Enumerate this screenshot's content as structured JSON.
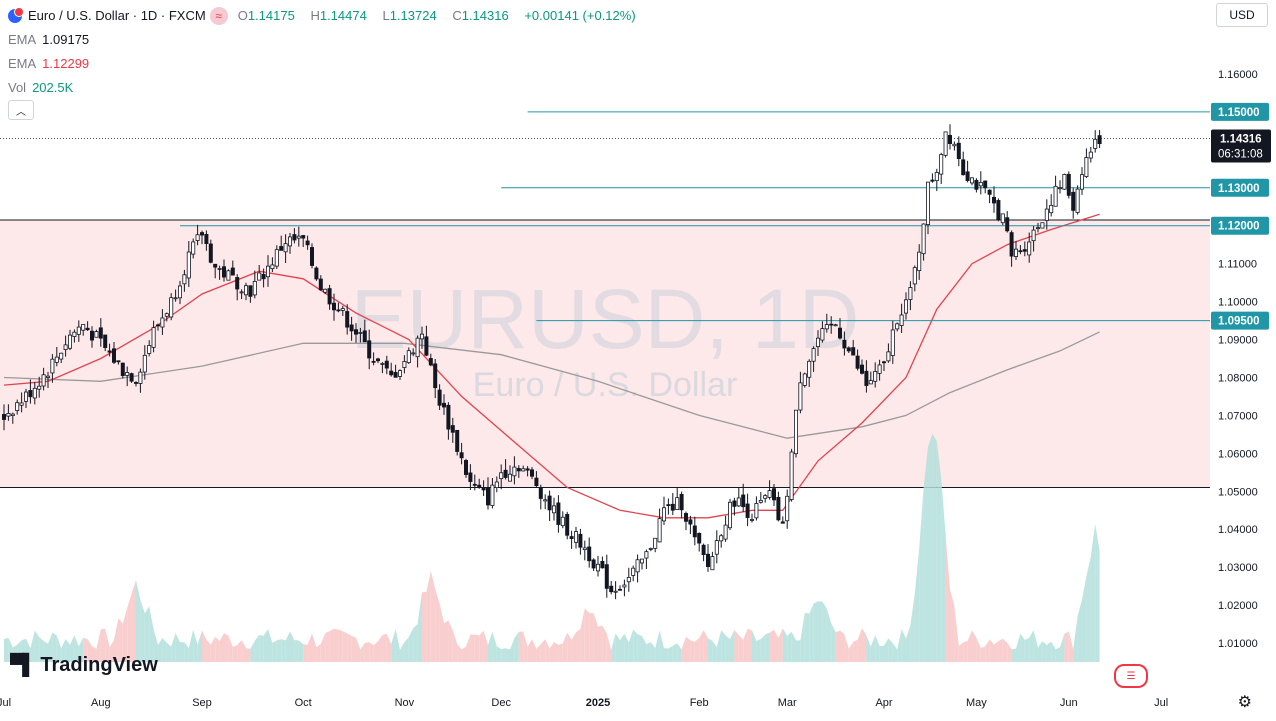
{
  "header": {
    "symbol_title": "Euro / U.S. Dollar · 1D · FXCM",
    "open_label": "O",
    "open": "1.14175",
    "high_label": "H",
    "high": "1.14474",
    "low_label": "L",
    "low": "1.13724",
    "close_label": "C",
    "close": "1.14316",
    "change": "+0.00141 (+0.12%)"
  },
  "indicators": [
    {
      "name": "EMA",
      "value": "1.09175",
      "color": "#787b86"
    },
    {
      "name": "EMA",
      "value": "1.12299",
      "color": "#f23645"
    },
    {
      "name": "Vol",
      "value": "202.5K",
      "color": "#26a69a"
    }
  ],
  "currency_selector": "USD",
  "watermark": {
    "symbol": "EURUSD, 1D",
    "description": "Euro / U.S. Dollar"
  },
  "brand": "TradingView",
  "price_tag": {
    "price": "1.14316",
    "countdown": "06:31:08"
  },
  "colors": {
    "up": "#26a69a",
    "down": "#ef5350",
    "candle": "#131722",
    "hline": "#2196a6",
    "zone": "#fde8ea",
    "ema_fast": "#e0454f",
    "ema_slow": "#9a9a9a"
  },
  "chart_data": {
    "type": "candlestick",
    "title": "EURUSD, 1D",
    "ylim": [
      1.005,
      1.165
    ],
    "y_ticks": [
      "1.16000",
      "1.15000",
      "1.14000",
      "1.13000",
      "1.12000",
      "1.11000",
      "1.10000",
      "1.09000",
      "1.08000",
      "1.07000",
      "1.06000",
      "1.05000",
      "1.04000",
      "1.03000",
      "1.02000",
      "1.01000"
    ],
    "x_labels": [
      "Jul",
      "Aug",
      "Sep",
      "Oct",
      "Nov",
      "Dec",
      "2025",
      "Feb",
      "Mar",
      "Apr",
      "May",
      "Jun",
      "Jul"
    ],
    "x_label_index": [
      0,
      22,
      45,
      68,
      91,
      113,
      135,
      158,
      178,
      200,
      221,
      242,
      263
    ],
    "horizontal_levels": [
      {
        "label": "1.15000",
        "value": 1.15,
        "start_index": 119
      },
      {
        "label": "1.13000",
        "value": 1.13,
        "start_index": 113
      },
      {
        "label": "1.12000",
        "value": 1.12,
        "start_index": 40
      },
      {
        "label": "1.09500",
        "value": 1.095,
        "start_index": 121
      }
    ],
    "zone": {
      "top": 1.1215,
      "bottom": 1.051
    },
    "close_path": [
      [
        0,
        1.07
      ],
      [
        5,
        1.075
      ],
      [
        10,
        1.082
      ],
      [
        15,
        1.091
      ],
      [
        18,
        1.094
      ],
      [
        22,
        1.089
      ],
      [
        27,
        1.082
      ],
      [
        30,
        1.08
      ],
      [
        34,
        1.092
      ],
      [
        38,
        1.1
      ],
      [
        42,
        1.112
      ],
      [
        45,
        1.118
      ],
      [
        48,
        1.109
      ],
      [
        52,
        1.106
      ],
      [
        56,
        1.103
      ],
      [
        60,
        1.109
      ],
      [
        64,
        1.116
      ],
      [
        68,
        1.116
      ],
      [
        72,
        1.104
      ],
      [
        76,
        1.098
      ],
      [
        80,
        1.092
      ],
      [
        84,
        1.085
      ],
      [
        88,
        1.08
      ],
      [
        92,
        1.086
      ],
      [
        95,
        1.092
      ],
      [
        98,
        1.077
      ],
      [
        102,
        1.065
      ],
      [
        106,
        1.052
      ],
      [
        110,
        1.048
      ],
      [
        113,
        1.055
      ],
      [
        117,
        1.057
      ],
      [
        121,
        1.052
      ],
      [
        124,
        1.046
      ],
      [
        128,
        1.04
      ],
      [
        132,
        1.035
      ],
      [
        135,
        1.03
      ],
      [
        138,
        1.024
      ],
      [
        142,
        1.027
      ],
      [
        146,
        1.033
      ],
      [
        150,
        1.045
      ],
      [
        154,
        1.047
      ],
      [
        157,
        1.037
      ],
      [
        160,
        1.03
      ],
      [
        163,
        1.04
      ],
      [
        166,
        1.048
      ],
      [
        170,
        1.044
      ],
      [
        174,
        1.049
      ],
      [
        177,
        1.04
      ],
      [
        179,
        1.06
      ],
      [
        181,
        1.08
      ],
      [
        185,
        1.09
      ],
      [
        189,
        1.094
      ],
      [
        192,
        1.087
      ],
      [
        196,
        1.078
      ],
      [
        200,
        1.083
      ],
      [
        203,
        1.096
      ],
      [
        206,
        1.102
      ],
      [
        208,
        1.114
      ],
      [
        210,
        1.13
      ],
      [
        212,
        1.135
      ],
      [
        214,
        1.145
      ],
      [
        216,
        1.142
      ],
      [
        218,
        1.135
      ],
      [
        221,
        1.131
      ],
      [
        224,
        1.127
      ],
      [
        227,
        1.122
      ],
      [
        229,
        1.112
      ],
      [
        232,
        1.115
      ],
      [
        235,
        1.12
      ],
      [
        238,
        1.127
      ],
      [
        241,
        1.132
      ],
      [
        243,
        1.125
      ],
      [
        245,
        1.135
      ],
      [
        247,
        1.14
      ],
      [
        249,
        1.143
      ]
    ],
    "ema_fast": [
      [
        0,
        1.078
      ],
      [
        10,
        1.079
      ],
      [
        22,
        1.085
      ],
      [
        34,
        1.093
      ],
      [
        45,
        1.102
      ],
      [
        58,
        1.108
      ],
      [
        68,
        1.106
      ],
      [
        80,
        1.097
      ],
      [
        92,
        1.09
      ],
      [
        104,
        1.075
      ],
      [
        116,
        1.063
      ],
      [
        128,
        1.051
      ],
      [
        140,
        1.045
      ],
      [
        150,
        1.043
      ],
      [
        160,
        1.043
      ],
      [
        170,
        1.045
      ],
      [
        177,
        1.045
      ],
      [
        185,
        1.058
      ],
      [
        195,
        1.068
      ],
      [
        205,
        1.08
      ],
      [
        212,
        1.098
      ],
      [
        220,
        1.11
      ],
      [
        228,
        1.115
      ],
      [
        238,
        1.119
      ],
      [
        249,
        1.123
      ]
    ],
    "ema_slow": [
      [
        0,
        1.08
      ],
      [
        22,
        1.079
      ],
      [
        45,
        1.083
      ],
      [
        68,
        1.089
      ],
      [
        91,
        1.089
      ],
      [
        113,
        1.086
      ],
      [
        135,
        1.079
      ],
      [
        158,
        1.07
      ],
      [
        178,
        1.064
      ],
      [
        195,
        1.067
      ],
      [
        205,
        1.07
      ],
      [
        215,
        1.076
      ],
      [
        228,
        1.082
      ],
      [
        240,
        1.087
      ],
      [
        249,
        1.092
      ]
    ],
    "volume_hint": "Volume histogram at bottom (teal = up, red = down), peaks near Aug, Nov, Apr and Jun"
  }
}
